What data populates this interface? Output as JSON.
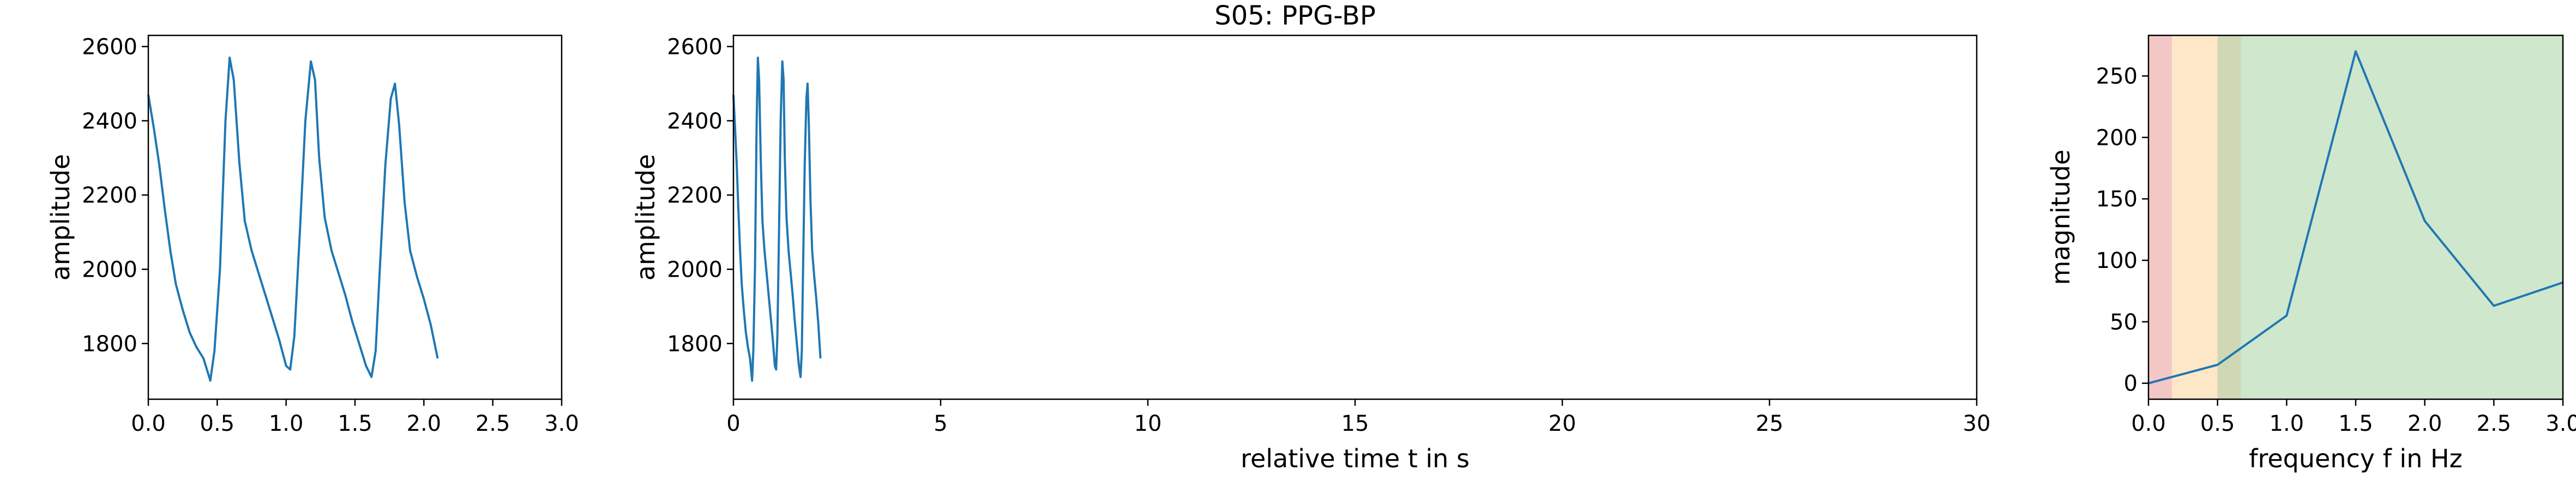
{
  "title": "S05: PPG-BP",
  "colors": {
    "series": "#1f77b4",
    "band_red": "#f4c7c7",
    "band_orange": "#fde7c7",
    "band_olive": "#cfd8b3",
    "band_green": "#cfe7cd"
  },
  "chart_data": [
    {
      "type": "line",
      "name": "raw-ppg-zoom",
      "xlabel": "",
      "ylabel": "amplitude",
      "xlim": [
        0,
        3
      ],
      "ylim": [
        1650,
        2630
      ],
      "xticks": [
        0.0,
        0.5,
        1.0,
        1.5,
        2.0,
        2.5,
        3.0
      ],
      "xtick_labels": [
        "0.0",
        "0.5",
        "1.0",
        "1.5",
        "2.0",
        "2.5",
        "3.0"
      ],
      "yticks": [
        1800,
        2000,
        2200,
        2400,
        2600
      ],
      "ytick_labels": [
        "1800",
        "2000",
        "2200",
        "2400",
        "2600"
      ],
      "grid": false,
      "x": [
        0.0,
        0.04,
        0.08,
        0.12,
        0.16,
        0.2,
        0.25,
        0.3,
        0.35,
        0.4,
        0.45,
        0.48,
        0.52,
        0.56,
        0.59,
        0.62,
        0.66,
        0.7,
        0.75,
        0.8,
        0.85,
        0.9,
        0.95,
        1.0,
        1.03,
        1.06,
        1.1,
        1.14,
        1.18,
        1.21,
        1.24,
        1.28,
        1.33,
        1.38,
        1.43,
        1.48,
        1.53,
        1.58,
        1.62,
        1.65,
        1.68,
        1.72,
        1.76,
        1.79,
        1.82,
        1.86,
        1.9,
        1.95,
        2.0,
        2.05,
        2.1
      ],
      "y": [
        2470,
        2380,
        2280,
        2160,
        2050,
        1960,
        1890,
        1830,
        1790,
        1760,
        1700,
        1780,
        2000,
        2400,
        2570,
        2510,
        2290,
        2130,
        2050,
        1990,
        1930,
        1870,
        1810,
        1740,
        1730,
        1820,
        2100,
        2400,
        2560,
        2510,
        2300,
        2140,
        2050,
        1990,
        1930,
        1860,
        1800,
        1740,
        1710,
        1780,
        2000,
        2280,
        2460,
        2500,
        2390,
        2180,
        2050,
        1980,
        1920,
        1850,
        1760
      ]
    },
    {
      "type": "line",
      "name": "raw-ppg-full",
      "xlabel": "relative time t in s",
      "ylabel": "amplitude",
      "xlim": [
        0,
        30
      ],
      "ylim": [
        1650,
        2630
      ],
      "xticks": [
        0,
        5,
        10,
        15,
        20,
        25,
        30
      ],
      "xtick_labels": [
        "0",
        "5",
        "10",
        "15",
        "20",
        "25",
        "30"
      ],
      "yticks": [
        1800,
        2000,
        2200,
        2400,
        2600
      ],
      "ytick_labels": [
        "1800",
        "2000",
        "2200",
        "2400",
        "2600"
      ],
      "grid": false,
      "x": [
        0.0,
        0.04,
        0.08,
        0.12,
        0.16,
        0.2,
        0.25,
        0.3,
        0.35,
        0.4,
        0.45,
        0.48,
        0.52,
        0.56,
        0.59,
        0.62,
        0.66,
        0.7,
        0.75,
        0.8,
        0.85,
        0.9,
        0.95,
        1.0,
        1.03,
        1.06,
        1.1,
        1.14,
        1.18,
        1.21,
        1.24,
        1.28,
        1.33,
        1.38,
        1.43,
        1.48,
        1.53,
        1.58,
        1.62,
        1.65,
        1.68,
        1.72,
        1.76,
        1.79,
        1.82,
        1.86,
        1.9,
        1.95,
        2.0,
        2.05,
        2.1
      ],
      "y": [
        2470,
        2380,
        2280,
        2160,
        2050,
        1960,
        1890,
        1830,
        1790,
        1760,
        1700,
        1780,
        2000,
        2400,
        2570,
        2510,
        2290,
        2130,
        2050,
        1990,
        1930,
        1870,
        1810,
        1740,
        1730,
        1820,
        2100,
        2400,
        2560,
        2510,
        2300,
        2140,
        2050,
        1990,
        1930,
        1860,
        1800,
        1740,
        1710,
        1780,
        2000,
        2280,
        2460,
        2500,
        2390,
        2180,
        2050,
        1980,
        1920,
        1850,
        1760
      ]
    },
    {
      "type": "line",
      "name": "spectrum",
      "xlabel": "frequency f in Hz",
      "ylabel": "magnitude",
      "xlim": [
        0,
        3
      ],
      "ylim": [
        -13,
        283
      ],
      "xticks": [
        0.0,
        0.5,
        1.0,
        1.5,
        2.0,
        2.5,
        3.0
      ],
      "xtick_labels": [
        "0.0",
        "0.5",
        "1.0",
        "1.5",
        "2.0",
        "2.5",
        "3.0"
      ],
      "yticks": [
        0,
        50,
        100,
        150,
        200,
        250
      ],
      "ytick_labels": [
        "0",
        "50",
        "100",
        "150",
        "200",
        "250"
      ],
      "grid": false,
      "x": [
        0.0,
        0.5,
        1.0,
        1.5,
        2.0,
        2.5,
        3.0
      ],
      "y": [
        0,
        15,
        55,
        270,
        132,
        63,
        82
      ],
      "bands": [
        {
          "from": 0.0,
          "to": 0.17,
          "color": "band_red"
        },
        {
          "from": 0.17,
          "to": 0.5,
          "color": "band_orange"
        },
        {
          "from": 0.5,
          "to": 0.67,
          "color": "band_olive"
        },
        {
          "from": 0.67,
          "to": 3.0,
          "color": "band_green"
        }
      ]
    }
  ]
}
